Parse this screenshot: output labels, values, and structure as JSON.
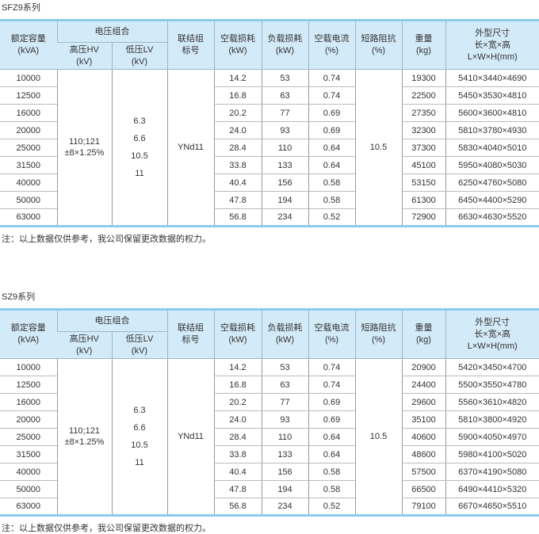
{
  "headers": {
    "capacity": "额定容量",
    "capacity_unit": "(kVA)",
    "voltage": "电压组合",
    "hv": "高压HV",
    "hv_unit": "(kV)",
    "lv": "低压LV",
    "lv_unit": "(kV)",
    "conn": "联结组",
    "conn2": "标号",
    "noload": "空载损耗",
    "noload_unit": "(kW)",
    "load": "负载损耗",
    "load_unit": "(kW)",
    "current": "空载电流",
    "current_unit": "(%)",
    "imp": "短路阻抗",
    "imp_unit": "(%)",
    "weight": "重量",
    "weight_unit": "(kg)",
    "dim": "外型尺寸",
    "dim2": "长×宽×高",
    "dim3": "L×W×H(mm)"
  },
  "tables": [
    {
      "title": "SFZ9系列",
      "hv": "110;121",
      "hv2": "±8×1.25%",
      "lv": [
        "6.3",
        "6.6",
        "10.5",
        "11"
      ],
      "conn": "YNd11",
      "imp": "10.5",
      "rows": [
        [
          "10000",
          "14.2",
          "53",
          "0.74",
          "19300",
          "5410×3440×4690"
        ],
        [
          "12500",
          "16.8",
          "63",
          "0.74",
          "22500",
          "5450×3530×4810"
        ],
        [
          "16000",
          "20.2",
          "77",
          "0.69",
          "27350",
          "5600×3600×4810"
        ],
        [
          "20000",
          "24.0",
          "93",
          "0.69",
          "32300",
          "5810×3780×4930"
        ],
        [
          "25000",
          "28.4",
          "110",
          "0.64",
          "37300",
          "5830×4040×5010"
        ],
        [
          "31500",
          "33.8",
          "133",
          "0.64",
          "45100",
          "5950×4080×5030"
        ],
        [
          "40000",
          "40.4",
          "156",
          "0.58",
          "53150",
          "6250×4760×5080"
        ],
        [
          "50000",
          "47.8",
          "194",
          "0.58",
          "61300",
          "6450×4400×5290"
        ],
        [
          "63000",
          "56.8",
          "234",
          "0.52",
          "72900",
          "6630×4630×5520"
        ]
      ],
      "note": "注：以上数据仅供参考，我公司保留更改数据的权力。"
    },
    {
      "title": "SZ9系列",
      "hv": "110;121",
      "hv2": "±8×1.25%",
      "lv": [
        "6.3",
        "6.6",
        "10.5",
        "11"
      ],
      "conn": "YNd11",
      "imp": "10.5",
      "rows": [
        [
          "10000",
          "14.2",
          "53",
          "0.74",
          "20900",
          "5420×3450×4700"
        ],
        [
          "12500",
          "16.8",
          "63",
          "0.74",
          "24400",
          "5500×3550×4780"
        ],
        [
          "16000",
          "20.2",
          "77",
          "0.69",
          "29600",
          "5560×3610×4820"
        ],
        [
          "20000",
          "24.0",
          "93",
          "0.69",
          "35100",
          "5810×3800×4920"
        ],
        [
          "25000",
          "28.4",
          "110",
          "0.64",
          "40600",
          "5900×4050×4970"
        ],
        [
          "31500",
          "33.8",
          "133",
          "0.64",
          "48600",
          "5980×4100×5020"
        ],
        [
          "40000",
          "40.4",
          "156",
          "0.58",
          "57500",
          "6370×4190×5080"
        ],
        [
          "50000",
          "47.8",
          "194",
          "0.58",
          "66500",
          "6490×4410×5320"
        ],
        [
          "63000",
          "56.8",
          "234",
          "0.52",
          "79100",
          "6670×4650×5510"
        ]
      ],
      "note": "注：以上数据仅供参考，我公司保留更改数据的权力。"
    }
  ]
}
